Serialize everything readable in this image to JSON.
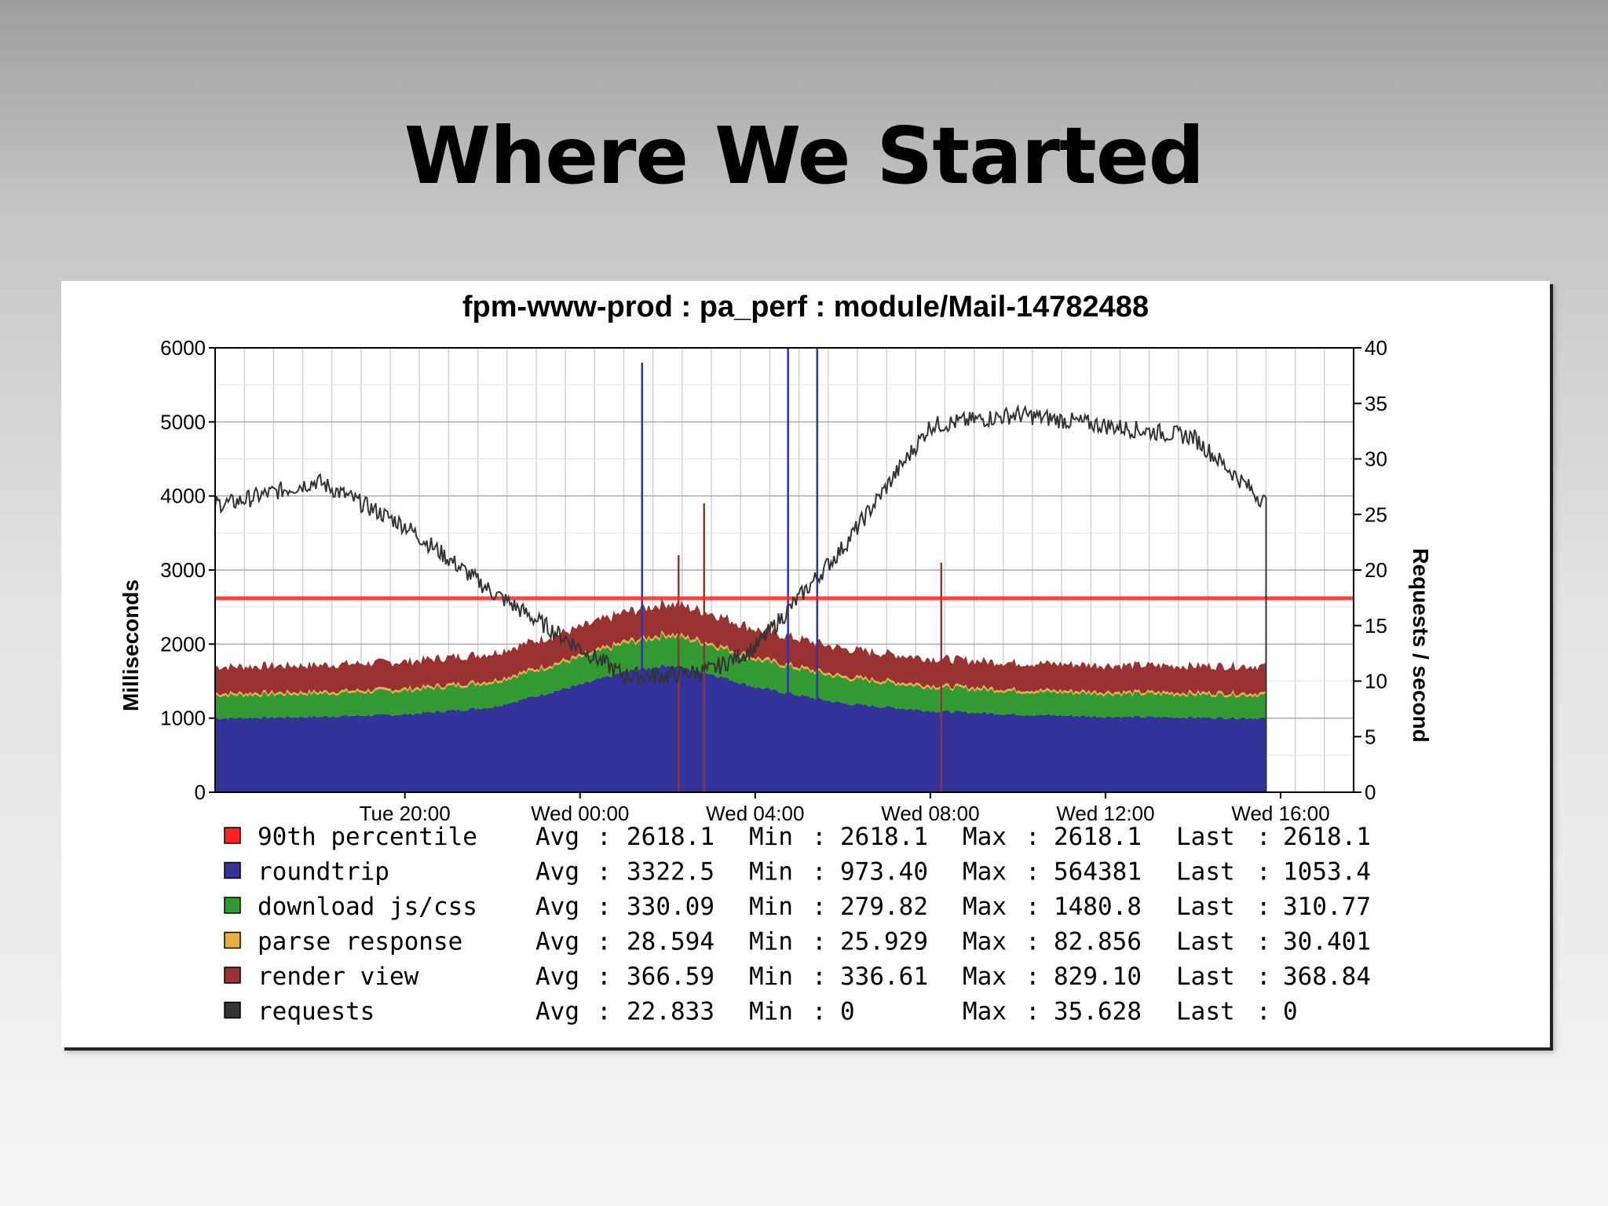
{
  "slide": {
    "title": "Where We Started"
  },
  "chart_data": {
    "type": "area",
    "title": "fpm-www-prod : pa_perf : module/Mail-14782488",
    "ylabel": "Milliseconds",
    "y2label": "Requests / second",
    "ylim": [
      0,
      6000
    ],
    "y2lim": [
      0,
      40
    ],
    "yticks": [
      0,
      1000,
      2000,
      3000,
      4000,
      5000,
      6000
    ],
    "y2ticks": [
      0,
      5,
      10,
      15,
      20,
      25,
      30,
      35,
      40
    ],
    "xlim_hours": [
      "Tue 15:40",
      "Wed 17:40"
    ],
    "xtick_labels": [
      "Tue 20:00",
      "Wed 00:00",
      "Wed 04:00",
      "Wed 08:00",
      "Wed 12:00",
      "Wed 16:00"
    ],
    "grid": true,
    "stacked": true,
    "x": [
      "Tue 16:00",
      "Tue 18:00",
      "Tue 20:00",
      "Tue 22:00",
      "Wed 00:00",
      "Wed 01:00",
      "Wed 02:00",
      "Wed 03:00",
      "Wed 04:00",
      "Wed 06:00",
      "Wed 08:00",
      "Wed 10:00",
      "Wed 12:00",
      "Wed 14:00",
      "Wed 15:40"
    ],
    "series": [
      {
        "name": "roundtrip",
        "axis": "left",
        "color": "#333399",
        "values": [
          1000,
          1020,
          1050,
          1150,
          1450,
          1620,
          1720,
          1600,
          1420,
          1200,
          1100,
          1050,
          1020,
          1010,
          1000
        ]
      },
      {
        "name": "download js/css",
        "axis": "left",
        "color": "#339933",
        "values": [
          310,
          310,
          320,
          330,
          360,
          380,
          400,
          390,
          370,
          340,
          320,
          310,
          310,
          310,
          310
        ]
      },
      {
        "name": "parse response",
        "axis": "left",
        "color": "#e8b040",
        "values": [
          28,
          28,
          29,
          29,
          30,
          31,
          32,
          31,
          30,
          29,
          28,
          28,
          28,
          28,
          30
        ]
      },
      {
        "name": "render view",
        "axis": "left",
        "color": "#993333",
        "values": [
          360,
          360,
          365,
          370,
          380,
          395,
          410,
          400,
          385,
          370,
          362,
          360,
          360,
          360,
          368
        ]
      },
      {
        "name": "90th percentile",
        "axis": "left",
        "color": "#ff2222",
        "values": [
          2618.1,
          2618.1,
          2618.1,
          2618.1,
          2618.1,
          2618.1,
          2618.1,
          2618.1,
          2618.1,
          2618.1,
          2618.1,
          2618.1,
          2618.1,
          2618.1,
          2618.1
        ]
      },
      {
        "name": "requests",
        "axis": "right",
        "color": "#333333",
        "values": [
          26,
          28,
          24,
          18,
          13,
          10.5,
          10.5,
          11,
          13,
          22,
          33,
          34,
          33,
          32,
          26
        ]
      }
    ],
    "spikes": [
      {
        "x": "Wed 01:25",
        "value": 5800,
        "color": "#333399"
      },
      {
        "x": "Wed 04:45",
        "value": 6000,
        "color": "#333399"
      },
      {
        "x": "Wed 05:25",
        "value": 6000,
        "color": "#333399"
      },
      {
        "x": "Wed 02:50",
        "value": 3900,
        "color": "#993333"
      },
      {
        "x": "Wed 02:15",
        "value": 3200,
        "color": "#993333"
      },
      {
        "x": "Wed 08:15",
        "value": 3100,
        "color": "#993333"
      }
    ],
    "legend": [
      {
        "name": "90th percentile",
        "color": "#ff2222",
        "avg": "2618.1",
        "min": "2618.1",
        "max": "2618.1",
        "last": "2618.1"
      },
      {
        "name": "roundtrip",
        "color": "#333399",
        "avg": "3322.5",
        "min": "973.40",
        "max": "564381",
        "last": "1053.4"
      },
      {
        "name": "download js/css",
        "color": "#339933",
        "avg": "330.09",
        "min": "279.82",
        "max": "1480.8",
        "last": "310.77"
      },
      {
        "name": "parse response",
        "color": "#e8b040",
        "avg": "28.594",
        "min": "25.929",
        "max": "82.856",
        "last": "30.401"
      },
      {
        "name": "render view",
        "color": "#993333",
        "avg": "366.59",
        "min": "336.61",
        "max": "829.10",
        "last": "368.84"
      },
      {
        "name": "requests",
        "color": "#333333",
        "avg": "22.833",
        "min": "0",
        "max": "35.628",
        "last": "0"
      }
    ],
    "legend_labels": {
      "avg": "Avg",
      "min": "Min",
      "max": "Max",
      "last": "Last",
      "sep": ":"
    },
    "legend_placement": "bottom"
  }
}
